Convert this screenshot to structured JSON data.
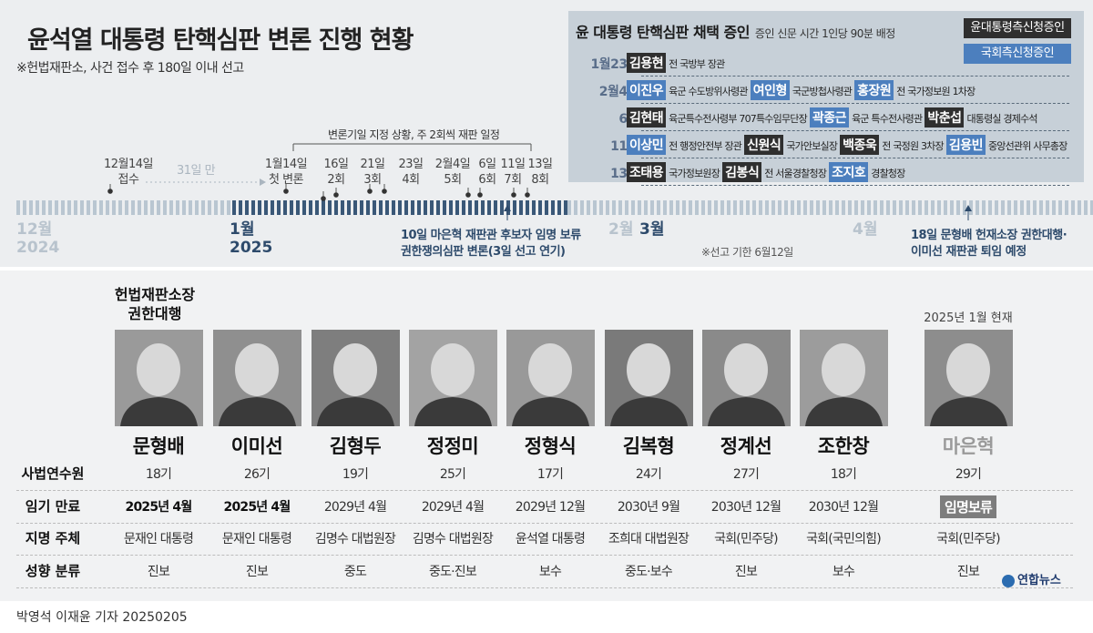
{
  "header": {
    "title": "윤석열 대통령 탄핵심판 변론 진행 현황",
    "subtitle": "※헌법재판소, 사건 접수 후 180일 이내 선고"
  },
  "witnesses": {
    "title": "윤 대통령 탄핵심판 채택 증인",
    "note": "증인 신문 시간 1인당 90분 배정",
    "legend_president": "윤대통령측신청증인",
    "legend_assembly": "국회측신청증인",
    "rows": [
      {
        "date": "1월23일",
        "items": [
          {
            "name": "김용현",
            "role": "전 국방부 장관",
            "side": "president"
          }
        ]
      },
      {
        "date": "2월4일",
        "items": [
          {
            "name": "이진우",
            "role": "육군 수도방위사령관",
            "side": "assembly"
          },
          {
            "name": "여인형",
            "role": "국군방첩사령관",
            "side": "assembly"
          },
          {
            "name": "홍장원",
            "role": "전 국가정보원 1차장",
            "side": "assembly"
          }
        ]
      },
      {
        "date": "6일",
        "items": [
          {
            "name": "김현태",
            "role": "육군특수전사령부 707특수임무단장",
            "side": "president"
          },
          {
            "name": "곽종근",
            "role": "육군 특수전사령관",
            "side": "assembly"
          },
          {
            "name": "박춘섭",
            "role": "대통령실 경제수석",
            "side": "president"
          }
        ]
      },
      {
        "date": "11일",
        "items": [
          {
            "name": "이상민",
            "role": "전 행정안전부 장관",
            "side": "assembly"
          },
          {
            "name": "신원식",
            "role": "국가안보실장",
            "side": "president"
          },
          {
            "name": "백종욱",
            "role": "전 국정원 3차장",
            "side": "president"
          },
          {
            "name": "김용빈",
            "role": "중앙선관위 사무총장",
            "side": "assembly"
          }
        ]
      },
      {
        "date": "13일",
        "items": [
          {
            "name": "조태용",
            "role": "국가정보원장",
            "side": "president"
          },
          {
            "name": "김봉식",
            "role": "전 서울경찰청장",
            "side": "president"
          },
          {
            "name": "조지호",
            "role": "경찰청장",
            "side": "assembly"
          }
        ]
      }
    ]
  },
  "timeline": {
    "bracket_label": "변론기일 지정 상황, 주 2회씩 재판 일정",
    "months": [
      {
        "label": "12월",
        "year": "2024",
        "faded": true
      },
      {
        "label": "1월",
        "year": "2025",
        "faded": false
      },
      {
        "label": "2월",
        "faded": true
      },
      {
        "label": "3월",
        "faded": false
      },
      {
        "label": "4월",
        "faded": true
      }
    ],
    "events": [
      {
        "date": "12월14일",
        "desc": "접수",
        "faded": false
      },
      {
        "date": "31일 만",
        "desc": "",
        "faded": true
      },
      {
        "date": "1월14일",
        "desc": "첫 변론",
        "faded": false
      },
      {
        "date": "16일",
        "desc": "2회",
        "faded": false
      },
      {
        "date": "21일",
        "desc": "3회",
        "faded": false
      },
      {
        "date": "23일",
        "desc": "4회",
        "faded": false
      },
      {
        "date": "2월4일",
        "desc": "5회",
        "faded": false
      },
      {
        "date": "6일",
        "desc": "6회",
        "faded": false
      },
      {
        "date": "11일",
        "desc": "7회",
        "faded": false
      },
      {
        "date": "13일",
        "desc": "8회",
        "faded": false
      }
    ],
    "note_feb10": [
      "10일 마은혁 재판관 후보자 임명 보류",
      "권한쟁의심판 변론(3일 선고 연기)"
    ],
    "note_apr18": [
      "18일 문형배 헌재소장 권한대행·",
      "이미선 재판관 퇴임 예정"
    ],
    "deadline_note": "※선고 기한 6월12일"
  },
  "justices": {
    "acting_label": [
      "헌법재판소장",
      "권한대행"
    ],
    "as_of_label": "2025년 1월 현재",
    "row_labels": [
      "사법연수원",
      "임기 만료",
      "지명 주체",
      "성향 분류"
    ],
    "list": [
      {
        "name": "문형배",
        "class": "18기",
        "term": "2025년 4월",
        "term_bold": true,
        "nominator": "문재인 대통령",
        "leaning": "진보"
      },
      {
        "name": "이미선",
        "class": "26기",
        "term": "2025년 4월",
        "term_bold": true,
        "nominator": "문재인 대통령",
        "leaning": "진보"
      },
      {
        "name": "김형두",
        "class": "19기",
        "term": "2029년 4월",
        "term_bold": false,
        "nominator": "김명수 대법원장",
        "leaning": "중도"
      },
      {
        "name": "정정미",
        "class": "25기",
        "term": "2029년 4월",
        "term_bold": false,
        "nominator": "김명수 대법원장",
        "leaning": "중도·진보"
      },
      {
        "name": "정형식",
        "class": "17기",
        "term": "2029년 12월",
        "term_bold": false,
        "nominator": "윤석열 대통령",
        "leaning": "보수"
      },
      {
        "name": "김복형",
        "class": "24기",
        "term": "2030년 9월",
        "term_bold": false,
        "nominator": "조희대 대법원장",
        "leaning": "중도·보수"
      },
      {
        "name": "정계선",
        "class": "27기",
        "term": "2030년 12월",
        "term_bold": false,
        "nominator": "국회(민주당)",
        "leaning": "진보"
      },
      {
        "name": "조한창",
        "class": "18기",
        "term": "2030년 12월",
        "term_bold": false,
        "nominator": "국회(국민의힘)",
        "leaning": "보수"
      },
      {
        "name": "마은혁",
        "class": "29기",
        "term": "임명보류",
        "term_bold": false,
        "nominator": "국회(민주당)",
        "leaning": "진보",
        "pending": true
      }
    ]
  },
  "footer": {
    "credit": "박영석 이재윤 기자 20250205",
    "logo": "연합뉴스"
  },
  "colors": {
    "president_side": "#2f2f2f",
    "assembly_side": "#4c7fbe",
    "panel_bg": "#eceef0",
    "witness_bg": "#c7d0d8"
  }
}
